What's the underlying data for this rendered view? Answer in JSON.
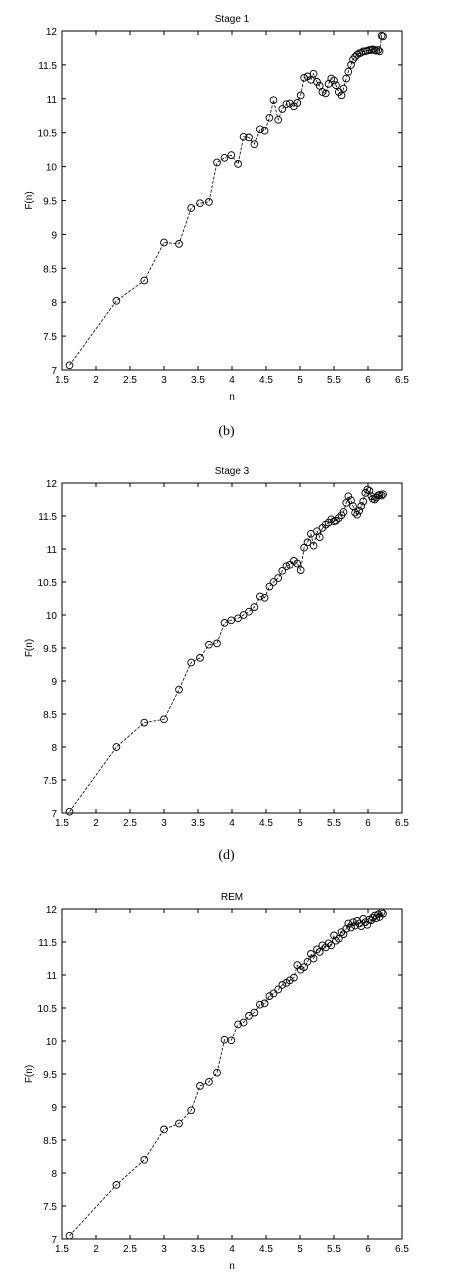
{
  "captions": [
    "(b)",
    "(d)"
  ],
  "chart_data": [
    {
      "type": "line",
      "title": "Stage 1",
      "xlabel": "n",
      "ylabel": "F(n)",
      "xlim": [
        1.5,
        6.5
      ],
      "ylim": [
        7,
        12
      ],
      "xticks": [
        1.5,
        2,
        2.5,
        3,
        3.5,
        4,
        4.5,
        5,
        5.5,
        6,
        6.5
      ],
      "xtick_labels": [
        "1.5",
        "2",
        "2.5",
        "3",
        "3.5",
        "4",
        "4.5",
        "5",
        "5.5",
        "6",
        "6.5"
      ],
      "yticks": [
        7,
        7.5,
        8,
        8.5,
        9,
        9.5,
        10,
        10.5,
        11,
        11.5,
        12
      ],
      "ytick_labels": [
        "7",
        "7.5",
        "8",
        "8.5",
        "9",
        "9.5",
        "10",
        "10.5",
        "11",
        "11.5",
        "12"
      ],
      "grid": false,
      "marker": "circle",
      "x": [
        1.61,
        2.3,
        2.71,
        3.0,
        3.22,
        3.4,
        3.53,
        3.66,
        3.78,
        3.89,
        3.99,
        4.09,
        4.17,
        4.25,
        4.33,
        4.41,
        4.48,
        4.55,
        4.61,
        4.68,
        4.74,
        4.8,
        4.85,
        4.91,
        4.96,
        5.01,
        5.06,
        5.11,
        5.16,
        5.2,
        5.25,
        5.29,
        5.33,
        5.38,
        5.42,
        5.46,
        5.5,
        5.53,
        5.57,
        5.61,
        5.64,
        5.68,
        5.71,
        5.75,
        5.78,
        5.81,
        5.84,
        5.87,
        5.9,
        5.93,
        5.96,
        5.99,
        6.02,
        6.05,
        6.07,
        6.1,
        6.12,
        6.15,
        6.17,
        6.2,
        6.22
      ],
      "y": [
        7.07,
        8.02,
        8.32,
        8.88,
        8.86,
        9.39,
        9.46,
        9.48,
        10.06,
        10.13,
        10.17,
        10.04,
        10.44,
        10.43,
        10.33,
        10.55,
        10.53,
        10.72,
        10.98,
        10.69,
        10.85,
        10.92,
        10.93,
        10.89,
        10.94,
        11.05,
        11.31,
        11.33,
        11.28,
        11.37,
        11.25,
        11.19,
        11.1,
        11.08,
        11.22,
        11.3,
        11.27,
        11.2,
        11.1,
        11.05,
        11.15,
        11.3,
        11.4,
        11.5,
        11.58,
        11.62,
        11.65,
        11.67,
        11.68,
        11.7,
        11.7,
        11.71,
        11.72,
        11.72,
        11.73,
        11.72,
        11.71,
        11.72,
        11.7,
        11.93,
        11.92
      ]
    },
    {
      "type": "line",
      "title": "Stage 3",
      "xlabel": "",
      "ylabel": "F(n)",
      "xlim": [
        1.5,
        6.5
      ],
      "ylim": [
        7,
        12
      ],
      "xticks": [
        1.5,
        2,
        2.5,
        3,
        3.5,
        4,
        4.5,
        5,
        5.5,
        6,
        6.5
      ],
      "xtick_labels": [
        "1.5",
        "2",
        "2.5",
        "3",
        "3.5",
        "4",
        "4.5",
        "5",
        "5.5",
        "6",
        "6.5"
      ],
      "yticks": [
        7,
        7.5,
        8,
        8.5,
        9,
        9.5,
        10,
        10.5,
        11,
        11.5,
        12
      ],
      "ytick_labels": [
        "7",
        "7.5",
        "8",
        "8.5",
        "9",
        "9.5",
        "10",
        "10.5",
        "11",
        "11.5",
        "12"
      ],
      "grid": false,
      "marker": "circle",
      "x": [
        1.61,
        2.3,
        2.71,
        3.0,
        3.22,
        3.4,
        3.53,
        3.66,
        3.78,
        3.89,
        3.99,
        4.09,
        4.17,
        4.25,
        4.33,
        4.41,
        4.48,
        4.55,
        4.61,
        4.68,
        4.74,
        4.8,
        4.85,
        4.91,
        4.96,
        5.01,
        5.06,
        5.11,
        5.16,
        5.2,
        5.25,
        5.29,
        5.33,
        5.38,
        5.42,
        5.46,
        5.5,
        5.53,
        5.57,
        5.61,
        5.64,
        5.68,
        5.71,
        5.75,
        5.78,
        5.81,
        5.84,
        5.87,
        5.9,
        5.93,
        5.96,
        5.99,
        6.02,
        6.05,
        6.07,
        6.1,
        6.12,
        6.15,
        6.17,
        6.2,
        6.22
      ],
      "y": [
        7.02,
        8.0,
        8.37,
        8.42,
        8.87,
        9.28,
        9.35,
        9.55,
        9.57,
        9.88,
        9.92,
        9.95,
        10.0,
        10.05,
        10.12,
        10.28,
        10.26,
        10.43,
        10.5,
        10.56,
        10.67,
        10.74,
        10.76,
        10.82,
        10.78,
        10.68,
        11.02,
        11.1,
        11.23,
        11.05,
        11.27,
        11.18,
        11.32,
        11.37,
        11.4,
        11.45,
        11.42,
        11.43,
        11.47,
        11.51,
        11.56,
        11.7,
        11.8,
        11.74,
        11.65,
        11.55,
        11.52,
        11.58,
        11.65,
        11.72,
        11.85,
        11.9,
        11.88,
        11.8,
        11.76,
        11.75,
        11.78,
        11.81,
        11.82,
        11.81,
        11.83
      ]
    },
    {
      "type": "line",
      "title": "REM",
      "xlabel": "n",
      "ylabel": "F(n)",
      "xlim": [
        1.5,
        6.5
      ],
      "ylim": [
        7,
        12
      ],
      "xticks": [
        1.5,
        2,
        2.5,
        3,
        3.5,
        4,
        4.5,
        5,
        5.5,
        6,
        6.5
      ],
      "xtick_labels": [
        "1.5",
        "2",
        "2.5",
        "3",
        "3.5",
        "4",
        "4.5",
        "5",
        "5.5",
        "6",
        "6.5"
      ],
      "yticks": [
        7,
        7.5,
        8,
        8.5,
        9,
        9.5,
        10,
        10.5,
        11,
        11.5,
        12
      ],
      "ytick_labels": [
        "7",
        "7.5",
        "8",
        "8.5",
        "9",
        "9.5",
        "10",
        "10.5",
        "11",
        "11.5",
        "12"
      ],
      "grid": false,
      "marker": "circle",
      "x": [
        1.61,
        2.3,
        2.71,
        3.0,
        3.22,
        3.4,
        3.53,
        3.66,
        3.78,
        3.89,
        3.99,
        4.09,
        4.17,
        4.25,
        4.33,
        4.41,
        4.48,
        4.55,
        4.61,
        4.68,
        4.74,
        4.8,
        4.85,
        4.91,
        4.96,
        5.01,
        5.06,
        5.11,
        5.16,
        5.2,
        5.25,
        5.29,
        5.33,
        5.38,
        5.42,
        5.46,
        5.5,
        5.53,
        5.57,
        5.61,
        5.64,
        5.68,
        5.71,
        5.75,
        5.78,
        5.81,
        5.84,
        5.87,
        5.9,
        5.93,
        5.96,
        5.99,
        6.02,
        6.05,
        6.07,
        6.1,
        6.12,
        6.15,
        6.17,
        6.2,
        6.22
      ],
      "y": [
        7.05,
        7.82,
        8.2,
        8.66,
        8.75,
        8.95,
        9.32,
        9.38,
        9.52,
        10.02,
        10.01,
        10.25,
        10.28,
        10.38,
        10.43,
        10.55,
        10.57,
        10.68,
        10.72,
        10.78,
        10.85,
        10.88,
        10.92,
        10.96,
        11.15,
        11.08,
        11.12,
        11.2,
        11.32,
        11.25,
        11.39,
        11.35,
        11.45,
        11.42,
        11.48,
        11.45,
        11.6,
        11.52,
        11.55,
        11.65,
        11.62,
        11.7,
        11.78,
        11.72,
        11.8,
        11.75,
        11.82,
        11.78,
        11.74,
        11.85,
        11.8,
        11.76,
        11.84,
        11.83,
        11.87,
        11.9,
        11.86,
        11.92,
        11.88,
        11.95,
        11.93
      ]
    }
  ]
}
